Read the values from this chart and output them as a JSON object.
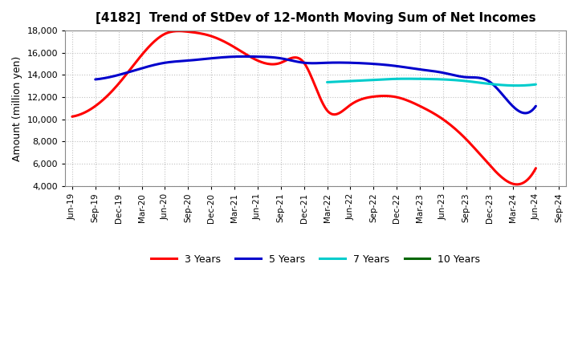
{
  "title": "[4182]  Trend of StDev of 12-Month Moving Sum of Net Incomes",
  "ylabel": "Amount (million yen)",
  "background_color": "#ffffff",
  "plot_bg_color": "#ffffff",
  "grid_color": "#999999",
  "x_labels": [
    "Jun-19",
    "Sep-19",
    "Dec-19",
    "Mar-20",
    "Jun-20",
    "Sep-20",
    "Dec-20",
    "Mar-21",
    "Jun-21",
    "Sep-21",
    "Dec-21",
    "Mar-22",
    "Jun-22",
    "Sep-22",
    "Dec-22",
    "Mar-23",
    "Jun-23",
    "Sep-23",
    "Dec-23",
    "Mar-24",
    "Jun-24",
    "Sep-24"
  ],
  "ylim": [
    4000,
    18000
  ],
  "yticks": [
    4000,
    6000,
    8000,
    10000,
    12000,
    14000,
    16000,
    18000
  ],
  "series": {
    "3 Years": {
      "color": "#ff0000",
      "data_x": [
        0,
        1,
        2,
        3,
        4,
        5,
        6,
        7,
        8,
        9,
        10,
        11,
        12,
        13,
        14,
        15,
        16,
        17,
        18,
        19,
        20
      ],
      "data_y": [
        10250,
        11200,
        13200,
        15800,
        17700,
        17900,
        17500,
        16500,
        15300,
        15100,
        15100,
        10800,
        11300,
        12050,
        12000,
        11200,
        10000,
        8200,
        5900,
        4200,
        5600
      ]
    },
    "5 Years": {
      "color": "#0000cc",
      "data_x": [
        1,
        2,
        3,
        4,
        5,
        6,
        7,
        8,
        9,
        10,
        11,
        12,
        13,
        14,
        15,
        16,
        17,
        18,
        19,
        20
      ],
      "data_y": [
        13600,
        14000,
        14600,
        15100,
        15300,
        15500,
        15650,
        15650,
        15500,
        15100,
        15100,
        15100,
        15000,
        14800,
        14500,
        14200,
        13800,
        13400,
        11200,
        11200
      ]
    },
    "7 Years": {
      "color": "#00cccc",
      "data_x": [
        11,
        12,
        13,
        14,
        15,
        16,
        17,
        18,
        19,
        20
      ],
      "data_y": [
        13350,
        13450,
        13550,
        13650,
        13650,
        13600,
        13450,
        13200,
        13050,
        13150
      ]
    },
    "10 Years": {
      "color": "#006600",
      "data_x": [],
      "data_y": []
    }
  },
  "legend_labels": [
    "3 Years",
    "5 Years",
    "7 Years",
    "10 Years"
  ],
  "legend_colors": [
    "#ff0000",
    "#0000cc",
    "#00cccc",
    "#006600"
  ]
}
